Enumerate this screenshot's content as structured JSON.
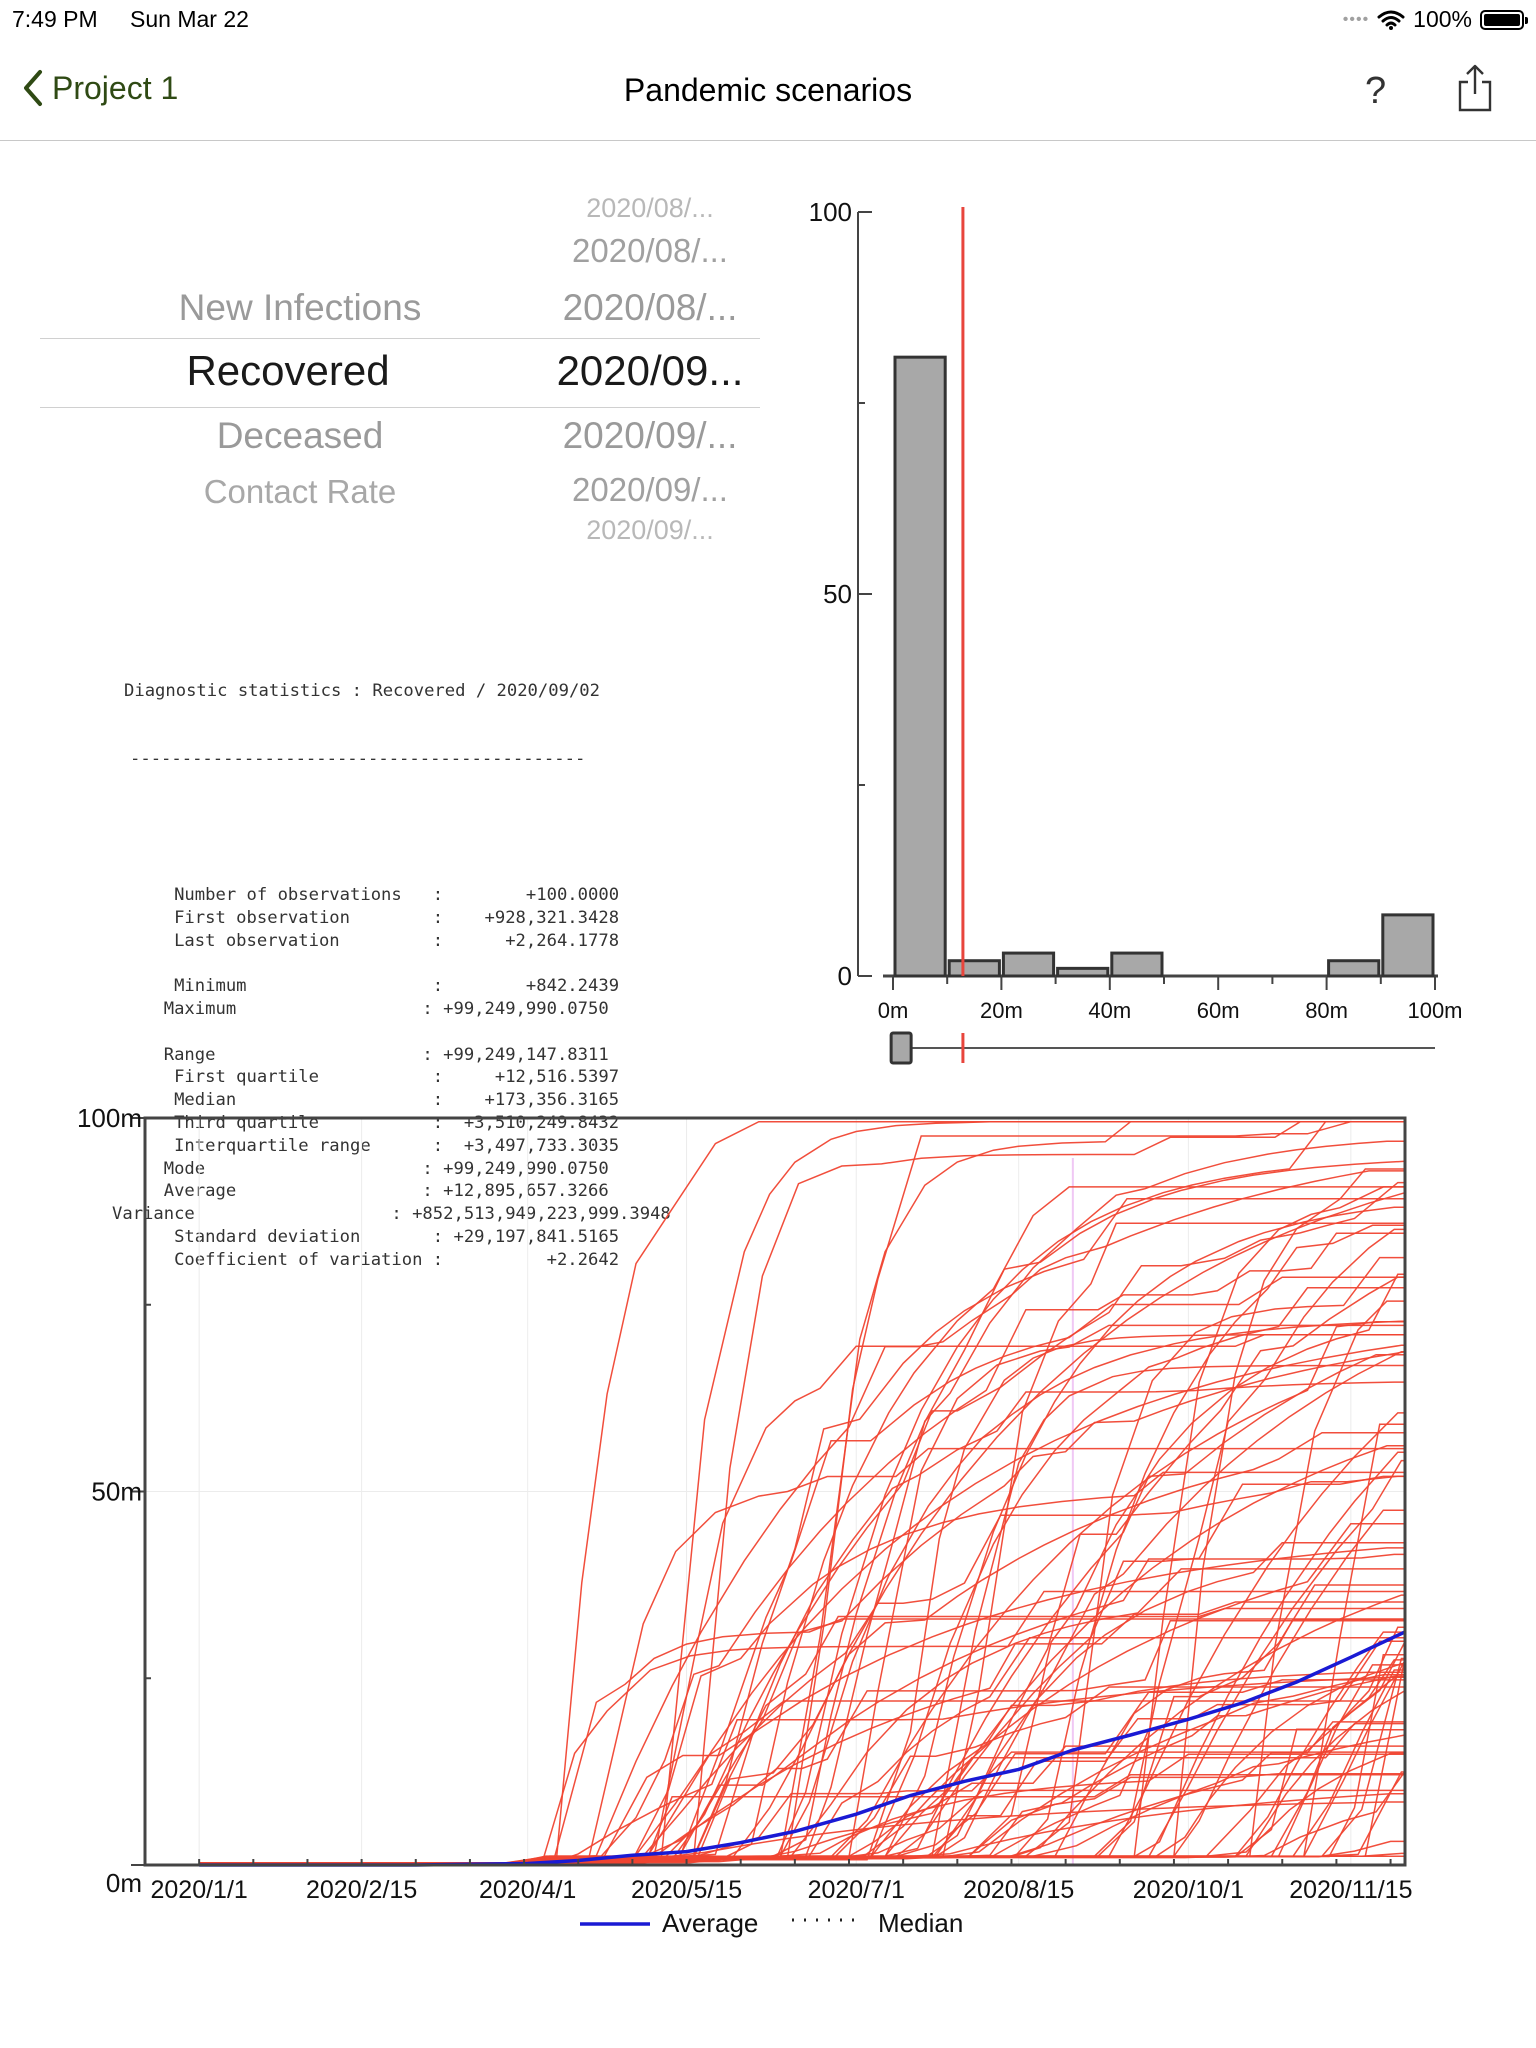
{
  "status_bar": {
    "time": "7:49 PM",
    "date": "Sun Mar 22",
    "battery": "100%"
  },
  "nav": {
    "back_label": "Project 1",
    "title": "Pandemic scenarios",
    "help_label": "?"
  },
  "picker": {
    "variables": [
      {
        "label": "New Infections",
        "state": "dim"
      },
      {
        "label": "Recovered",
        "state": "selected"
      },
      {
        "label": "Deceased",
        "state": "dim"
      },
      {
        "label": "Contact Rate",
        "state": "dim"
      }
    ],
    "dates": [
      "2020/08/...",
      "2020/08/...",
      "2020/08/...",
      "2020/09...",
      "2020/09/...",
      "2020/09/...",
      "2020/09/..."
    ]
  },
  "diagnostics": {
    "header": "Diagnostic statistics : Recovered / 2020/09/02",
    "rule": "--------------------------------------------",
    "lines": [
      "      Number of observations   :        +100.0000",
      "      First observation        :    +928,321.3428",
      "      Last observation         :      +2,264.1778",
      "",
      "      Minimum                  :        +842.2439",
      "     Maximum                  : +99,249,990.0750",
      "",
      "     Range                    : +99,249,147.8311",
      "      First quartile           :     +12,516.5397",
      "      Median                   :    +173,356.3165",
      "      Third quartile           :  +3,510,249.8432",
      "      Interquartile range      :  +3,497,733.3035",
      "     Mode                     : +99,249,990.0750",
      "     Average                  : +12,895,657.3266",
      "Variance                   : +852,513,949,223,999.3948",
      "      Standard deviation       : +29,197,841.5165",
      "      Coefficient of variation :          +2.2642"
    ]
  },
  "histogram": {
    "type": "bar",
    "y_ticks": [
      "100",
      "50",
      "0"
    ],
    "x_ticks": [
      "0m",
      "20m",
      "40m",
      "60m",
      "80m",
      "100m"
    ],
    "ylim": [
      0,
      100
    ],
    "xlim": [
      0,
      100
    ],
    "bin_width": 10,
    "bins": [
      {
        "x0": 0,
        "count": 81
      },
      {
        "x0": 10,
        "count": 2
      },
      {
        "x0": 20,
        "count": 3
      },
      {
        "x0": 30,
        "count": 1
      },
      {
        "x0": 40,
        "count": 3
      },
      {
        "x0": 50,
        "count": 0
      },
      {
        "x0": 60,
        "count": 0
      },
      {
        "x0": 70,
        "count": 0
      },
      {
        "x0": 80,
        "count": 2
      },
      {
        "x0": 90,
        "count": 8
      }
    ],
    "marker_value": 12.9,
    "slider_value": 1.5,
    "bar_color": "#a8a8a8",
    "marker_color": "#e8453c"
  },
  "chart_data": {
    "type": "line",
    "y_ticks": [
      "100m",
      "50m",
      "0m"
    ],
    "ylim": [
      0,
      100
    ],
    "x_ticks": [
      "2020/1/1",
      "2020/2/15",
      "2020/4/1",
      "2020/5/15",
      "2020/7/1",
      "2020/8/15",
      "2020/10/1",
      "2020/11/15"
    ],
    "x_tick_days": [
      0,
      45,
      91,
      135,
      182,
      227,
      274,
      319
    ],
    "x_range_days": [
      -15,
      334
    ],
    "x_positions_days": [
      0,
      15,
      30,
      45,
      60,
      75,
      91,
      105,
      120,
      135,
      150,
      165,
      182,
      197,
      212,
      227,
      242,
      258,
      274,
      289,
      304,
      319,
      334
    ],
    "average": [
      0,
      0,
      0,
      0,
      0,
      0.1,
      0.2,
      0.6,
      1.3,
      1.8,
      3,
      4.5,
      6.8,
      9.3,
      11.2,
      12.8,
      15.4,
      17.4,
      19.5,
      21.7,
      24.5,
      27.8,
      31.2
    ],
    "scenario_color": "#f04432",
    "average_color": "#1a1ad4",
    "legend": [
      {
        "label": "Average",
        "style": "solid"
      },
      {
        "label": "Median",
        "style": "dotted"
      }
    ]
  }
}
